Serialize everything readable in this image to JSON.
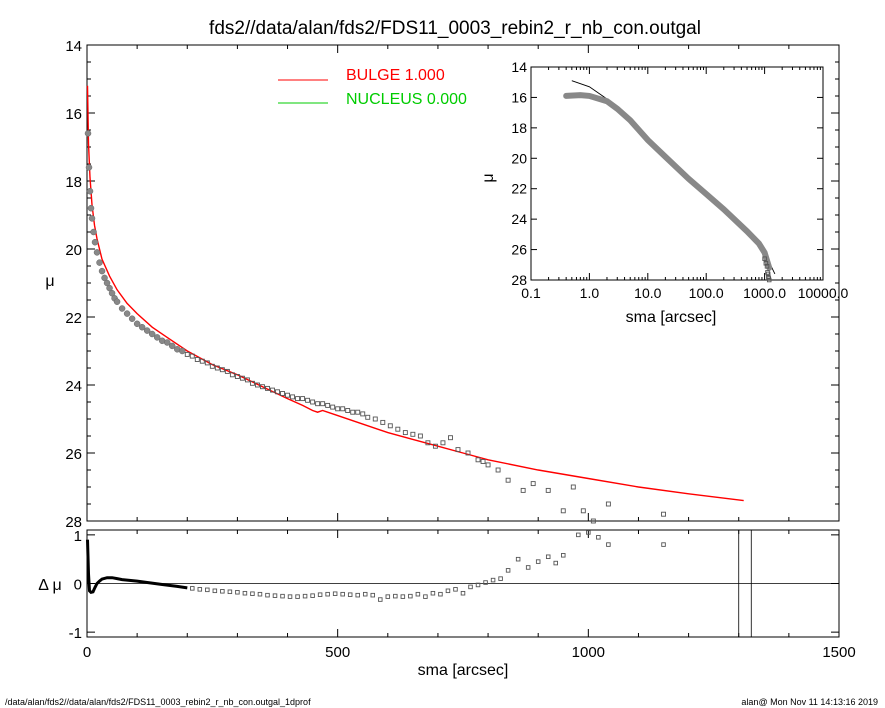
{
  "chart_data": [
    {
      "type": "scatter",
      "title": "fds2//data/alan/fds2/FDS11_0003_rebin2_r_nb_con.outgal",
      "xlabel": "",
      "ylabel": "μ",
      "xlim": [
        0,
        1500
      ],
      "ylim": [
        28,
        14
      ],
      "yticks": [
        "14",
        "16",
        "18",
        "20",
        "22",
        "24",
        "26",
        "28"
      ],
      "legend_placement": "top-center",
      "series": [
        {
          "name": "BULGE  1.000",
          "color": "#ff0000",
          "kind": "line",
          "x": [
            1,
            3,
            6,
            10,
            15,
            20,
            30,
            45,
            60,
            80,
            100,
            130,
            160,
            200,
            250,
            300,
            350,
            400,
            430,
            450,
            460,
            470,
            500,
            550,
            600,
            650,
            700,
            750,
            800,
            900,
            1000,
            1100,
            1200,
            1310
          ],
          "y": [
            15.2,
            16.9,
            17.9,
            18.7,
            19.3,
            19.7,
            20.3,
            20.8,
            21.2,
            21.6,
            21.9,
            22.3,
            22.6,
            23.0,
            23.4,
            23.7,
            24.05,
            24.4,
            24.6,
            24.75,
            24.8,
            24.75,
            24.9,
            25.15,
            25.4,
            25.6,
            25.8,
            26.0,
            26.2,
            26.5,
            26.75,
            27.0,
            27.2,
            27.4
          ]
        },
        {
          "name": "NUCLEUS  0.000",
          "color": "#00cc00",
          "kind": "line",
          "x": [],
          "y": []
        },
        {
          "name": "",
          "color": "#555555",
          "kind": "markers",
          "x": [
            2,
            4,
            6,
            8,
            10,
            13,
            16,
            20,
            25,
            30,
            35,
            40,
            45,
            50,
            55,
            60,
            70,
            80,
            90,
            100,
            110,
            120,
            130,
            140,
            150,
            160,
            170,
            180,
            190,
            200,
            210,
            220,
            230,
            240,
            250,
            260,
            270,
            280,
            290,
            300,
            310,
            320,
            330,
            340,
            350,
            360,
            370,
            380,
            390,
            400,
            410,
            420,
            430,
            440,
            450,
            460,
            470,
            480,
            490,
            500,
            510,
            520,
            530,
            540,
            550,
            560,
            575,
            590,
            605,
            620,
            635,
            650,
            665,
            680,
            695,
            710,
            725,
            740,
            760,
            780,
            790,
            800,
            820,
            840,
            870,
            890,
            920,
            950,
            970,
            990,
            1010,
            1040,
            1150
          ],
          "y": [
            16.6,
            17.6,
            18.3,
            18.8,
            19.1,
            19.5,
            19.8,
            20.1,
            20.4,
            20.65,
            20.85,
            21.0,
            21.15,
            21.3,
            21.45,
            21.55,
            21.75,
            21.9,
            22.05,
            22.2,
            22.3,
            22.4,
            22.5,
            22.6,
            22.7,
            22.75,
            22.85,
            22.95,
            23.0,
            23.1,
            23.15,
            23.25,
            23.3,
            23.35,
            23.45,
            23.5,
            23.55,
            23.6,
            23.7,
            23.75,
            23.8,
            23.85,
            23.95,
            24.0,
            24.05,
            24.1,
            24.15,
            24.2,
            24.25,
            24.3,
            24.35,
            24.4,
            24.4,
            24.45,
            24.5,
            24.55,
            24.55,
            24.6,
            24.65,
            24.7,
            24.7,
            24.75,
            24.8,
            24.8,
            24.85,
            24.95,
            25.0,
            25.1,
            25.2,
            25.3,
            25.4,
            25.45,
            25.5,
            25.7,
            25.8,
            25.7,
            25.55,
            25.9,
            26.0,
            26.2,
            26.25,
            26.35,
            26.5,
            26.8,
            27.1,
            26.9,
            27.1,
            27.7,
            27.0,
            27.7,
            28.0,
            27.5,
            27.8
          ]
        }
      ]
    },
    {
      "type": "scatter",
      "title": "",
      "xlabel": "sma [arcsec]",
      "ylabel": "Δ μ",
      "xlim": [
        0,
        1500
      ],
      "ylim": [
        -1.1,
        1.1
      ],
      "xticks": [
        "0",
        "500",
        "1000",
        "1500"
      ],
      "yticks": [
        "1",
        "0",
        "-1"
      ],
      "vertical_lines_x": [
        1300,
        1325
      ],
      "series": [
        {
          "name": "",
          "color": "#000000",
          "kind": "line",
          "x": [
            1,
            3,
            5,
            8,
            12,
            16,
            20,
            25,
            30,
            40,
            50,
            60,
            70,
            80,
            100,
            120,
            150,
            180,
            200
          ],
          "y": [
            0.9,
            0.2,
            -0.15,
            -0.18,
            -0.17,
            -0.08,
            0.0,
            0.05,
            0.09,
            0.12,
            0.12,
            0.1,
            0.08,
            0.07,
            0.05,
            0.02,
            -0.02,
            -0.06,
            -0.09
          ]
        },
        {
          "name": "",
          "color": "#555555",
          "kind": "markers",
          "x": [
            210,
            225,
            240,
            255,
            270,
            285,
            300,
            315,
            330,
            345,
            360,
            375,
            390,
            405,
            420,
            435,
            450,
            465,
            480,
            495,
            510,
            525,
            540,
            555,
            570,
            585,
            600,
            615,
            630,
            645,
            660,
            675,
            690,
            705,
            720,
            735,
            750,
            765,
            780,
            795,
            810,
            825,
            840,
            860,
            880,
            900,
            920,
            935,
            950,
            980,
            1000,
            1020,
            1040,
            1150
          ],
          "y": [
            -0.1,
            -0.12,
            -0.13,
            -0.15,
            -0.16,
            -0.17,
            -0.18,
            -0.2,
            -0.21,
            -0.22,
            -0.24,
            -0.25,
            -0.26,
            -0.27,
            -0.27,
            -0.26,
            -0.25,
            -0.23,
            -0.22,
            -0.21,
            -0.22,
            -0.23,
            -0.24,
            -0.22,
            -0.24,
            -0.33,
            -0.27,
            -0.26,
            -0.27,
            -0.26,
            -0.22,
            -0.27,
            -0.2,
            -0.22,
            -0.15,
            -0.12,
            -0.2,
            -0.07,
            -0.03,
            0.02,
            0.07,
            0.1,
            0.27,
            0.5,
            0.33,
            0.45,
            0.55,
            0.42,
            0.58,
            1.0,
            1.05,
            0.95,
            0.8,
            0.8
          ]
        }
      ]
    },
    {
      "type": "scatter",
      "title": "",
      "xlabel": "sma [arcsec]",
      "ylabel": "μ",
      "xscale": "log",
      "xlim": [
        0.1,
        10000
      ],
      "ylim": [
        28,
        14
      ],
      "xticks": [
        "0.1",
        "1.0",
        "10.0",
        "100.0",
        "1000.0",
        "10000.0"
      ],
      "yticks": [
        "14",
        "16",
        "18",
        "20",
        "22",
        "24",
        "26",
        "28"
      ],
      "series": [
        {
          "name": "",
          "color": "#000000",
          "kind": "line",
          "x": [
            0.5,
            1,
            2,
            3,
            5,
            10,
            20,
            50,
            100,
            200,
            500,
            1000,
            1500
          ],
          "y": [
            14.9,
            15.3,
            16.1,
            16.8,
            17.6,
            18.7,
            19.8,
            21.3,
            22.4,
            23.4,
            24.9,
            26.2,
            27.6
          ]
        },
        {
          "name": "",
          "color": "#888888",
          "kind": "thick-line",
          "x": [
            0.4,
            0.7,
            1,
            2,
            3,
            5,
            10,
            20,
            50,
            100,
            200,
            500,
            800,
            1000,
            1200
          ],
          "y": [
            15.9,
            15.85,
            15.9,
            16.25,
            16.75,
            17.5,
            18.8,
            19.9,
            21.35,
            22.35,
            23.35,
            24.8,
            25.6,
            26.2,
            27.2
          ]
        },
        {
          "name": "",
          "color": "#555555",
          "kind": "markers",
          "x": [
            1000,
            1050,
            1100,
            1120,
            1150,
            1160,
            1180,
            1200
          ],
          "y": [
            26.6,
            26.9,
            27.1,
            27.5,
            27.6,
            27.8,
            27.9,
            28.0
          ]
        }
      ]
    }
  ],
  "footer": {
    "left": "/data/alan/fds2//data/alan/fds2/FDS11_0003_rebin2_r_nb_con.outgal_1dprof",
    "right": "alan@  Mon Nov 11 14:13:16 2019"
  }
}
